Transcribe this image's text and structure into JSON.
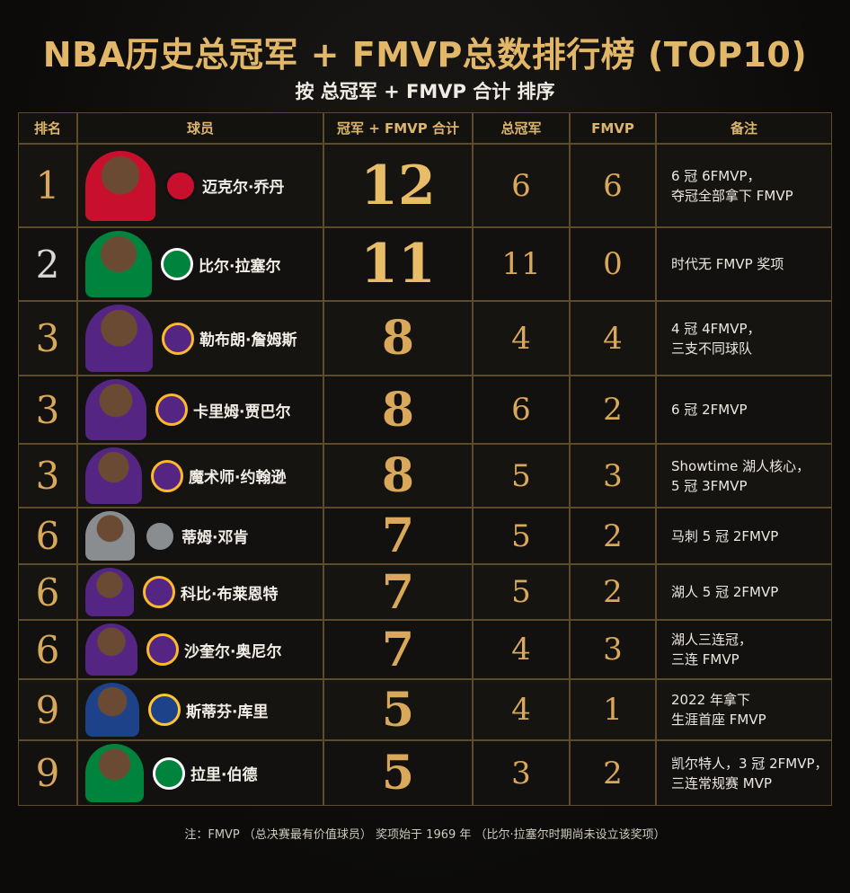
{
  "header": {
    "title": "NBA历史总冠军 + FMVP总数排行榜 (TOP10)",
    "subtitle": "按 总冠军 + FMVP 合计 排序"
  },
  "table": {
    "columns": [
      "排名",
      "球员",
      "冠军 + FMVP 合计",
      "总冠军",
      "FMVP",
      "备注"
    ],
    "rows": [
      {
        "rank": 1,
        "player": "迈克尔·乔丹",
        "total": 12,
        "championships": 6,
        "fmvp": 6,
        "note": [
          "6 冠 6FMVP，",
          "夺冠全部拿下 FMVP"
        ]
      },
      {
        "rank": 2,
        "player": "比尔·拉塞尔",
        "total": 11,
        "championships": 11,
        "fmvp": 0,
        "note": [
          "时代无 FMVP 奖项"
        ]
      },
      {
        "rank": 3,
        "player": "勒布朗·詹姆斯",
        "total": 8,
        "championships": 4,
        "fmvp": 4,
        "note": [
          "4 冠 4FMVP，",
          "三支不同球队"
        ]
      },
      {
        "rank": 3,
        "player": "卡里姆·贾巴尔",
        "total": 8,
        "championships": 6,
        "fmvp": 2,
        "note": [
          "6 冠 2FMVP"
        ]
      },
      {
        "rank": 3,
        "player": "魔术师·约翰逊",
        "total": 8,
        "championships": 5,
        "fmvp": 3,
        "note": [
          "Showtime 湖人核心，",
          "5 冠 3FMVP"
        ]
      },
      {
        "rank": 6,
        "player": "蒂姆·邓肯",
        "total": 7,
        "championships": 5,
        "fmvp": 2,
        "note": [
          "马刺 5 冠 2FMVP"
        ]
      },
      {
        "rank": 6,
        "player": "科比·布莱恩特",
        "total": 7,
        "championships": 5,
        "fmvp": 2,
        "note": [
          "湖人 5 冠 2FMVP"
        ]
      },
      {
        "rank": 6,
        "player": "沙奎尔·奥尼尔",
        "total": 7,
        "championships": 4,
        "fmvp": 3,
        "note": [
          "湖人三连冠，",
          "三连 FMVP"
        ]
      },
      {
        "rank": 9,
        "player": "斯蒂芬·库里",
        "total": 5,
        "championships": 4,
        "fmvp": 1,
        "note": [
          "2022 年拿下",
          "生涯首座 FMVP"
        ]
      },
      {
        "rank": 9,
        "player": "拉里·伯德",
        "total": 5,
        "championships": 3,
        "fmvp": 2,
        "note": [
          "凯尔特人，3 冠 2FMVP，",
          "三连常规赛 MVP"
        ]
      }
    ]
  },
  "footnote": "注：FMVP （总决赛最有价值球员） 奖项始于 1969 年 （比尔·拉塞尔时期尚未设立该奖项）"
}
